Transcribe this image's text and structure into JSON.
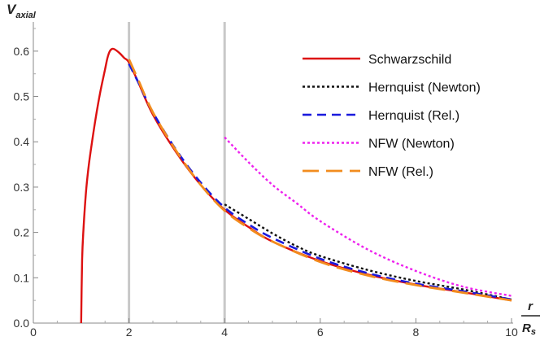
{
  "chart_data": {
    "type": "line",
    "title": "",
    "ylabel_main": "V",
    "ylabel_sub": "axial",
    "xlabel_num": "r",
    "xlabel_den_main": "R",
    "xlabel_den_sub": "s",
    "xlim": [
      0,
      10
    ],
    "ylim": [
      0,
      0.65
    ],
    "xticks": [
      0,
      2,
      4,
      6,
      8,
      10
    ],
    "yticks": [
      0.0,
      0.1,
      0.2,
      0.3,
      0.4,
      0.5,
      0.6
    ],
    "xtick_labels": [
      "0",
      "2",
      "4",
      "6",
      "8",
      "10"
    ],
    "ytick_labels": [
      "0.0",
      "0.1",
      "0.2",
      "0.3",
      "0.4",
      "0.5",
      "0.6"
    ],
    "grid": false,
    "vertical_lines": [
      2,
      4
    ],
    "vertical_line_color": "#c8c8c8",
    "legend_position": "top-right",
    "series": [
      {
        "name": "Schwarzschild",
        "color": "#dd1111",
        "style": "solid",
        "points": [
          [
            1.0,
            0.0
          ],
          [
            1.02,
            0.14
          ],
          [
            1.05,
            0.21
          ],
          [
            1.1,
            0.288
          ],
          [
            1.15,
            0.34
          ],
          [
            1.2,
            0.38
          ],
          [
            1.3,
            0.45
          ],
          [
            1.4,
            0.51
          ],
          [
            1.5,
            0.56
          ],
          [
            1.55,
            0.585
          ],
          [
            1.6,
            0.6
          ],
          [
            1.65,
            0.605
          ],
          [
            1.7,
            0.604
          ],
          [
            1.8,
            0.596
          ],
          [
            1.9,
            0.585
          ],
          [
            2.0,
            0.575
          ],
          [
            2.2,
            0.53
          ],
          [
            2.5,
            0.46
          ],
          [
            3.0,
            0.375
          ],
          [
            3.5,
            0.305
          ],
          [
            4.0,
            0.25
          ],
          [
            4.5,
            0.212
          ],
          [
            5.0,
            0.18
          ],
          [
            6.0,
            0.137
          ],
          [
            7.0,
            0.107
          ],
          [
            8.0,
            0.085
          ],
          [
            9.0,
            0.068
          ],
          [
            10.0,
            0.05
          ]
        ]
      },
      {
        "name": "Hernquist (Newton)",
        "color": "#111111",
        "style": "dotted",
        "points": [
          [
            4.0,
            0.262
          ],
          [
            4.5,
            0.23
          ],
          [
            5.0,
            0.198
          ],
          [
            5.5,
            0.17
          ],
          [
            6.0,
            0.148
          ],
          [
            7.0,
            0.117
          ],
          [
            8.0,
            0.093
          ],
          [
            9.0,
            0.074
          ],
          [
            10.0,
            0.052
          ]
        ]
      },
      {
        "name": "Hernquist (Rel.)",
        "color": "#1a1add",
        "style": "dashed",
        "points": [
          [
            2.0,
            0.572
          ],
          [
            2.2,
            0.53
          ],
          [
            2.5,
            0.465
          ],
          [
            3.0,
            0.38
          ],
          [
            3.5,
            0.31
          ],
          [
            4.0,
            0.255
          ],
          [
            4.5,
            0.218
          ],
          [
            5.0,
            0.188
          ],
          [
            6.0,
            0.142
          ],
          [
            7.0,
            0.11
          ],
          [
            8.0,
            0.087
          ],
          [
            9.0,
            0.07
          ],
          [
            10.0,
            0.052
          ]
        ]
      },
      {
        "name": "NFW (Newton)",
        "color": "#ee22ee",
        "style": "dotted",
        "points": [
          [
            4.0,
            0.41
          ],
          [
            4.5,
            0.355
          ],
          [
            5.0,
            0.305
          ],
          [
            5.5,
            0.265
          ],
          [
            6.0,
            0.225
          ],
          [
            7.0,
            0.162
          ],
          [
            8.0,
            0.115
          ],
          [
            9.0,
            0.08
          ],
          [
            10.0,
            0.06
          ]
        ]
      },
      {
        "name": "NFW (Rel.)",
        "color": "#f28c1e",
        "style": "longdash",
        "points": [
          [
            2.0,
            0.582
          ],
          [
            2.2,
            0.535
          ],
          [
            2.5,
            0.465
          ],
          [
            3.0,
            0.378
          ],
          [
            3.5,
            0.305
          ],
          [
            4.0,
            0.248
          ],
          [
            4.5,
            0.21
          ],
          [
            5.0,
            0.18
          ],
          [
            6.0,
            0.135
          ],
          [
            7.0,
            0.105
          ],
          [
            8.0,
            0.084
          ],
          [
            9.0,
            0.067
          ],
          [
            10.0,
            0.05
          ]
        ]
      }
    ]
  }
}
